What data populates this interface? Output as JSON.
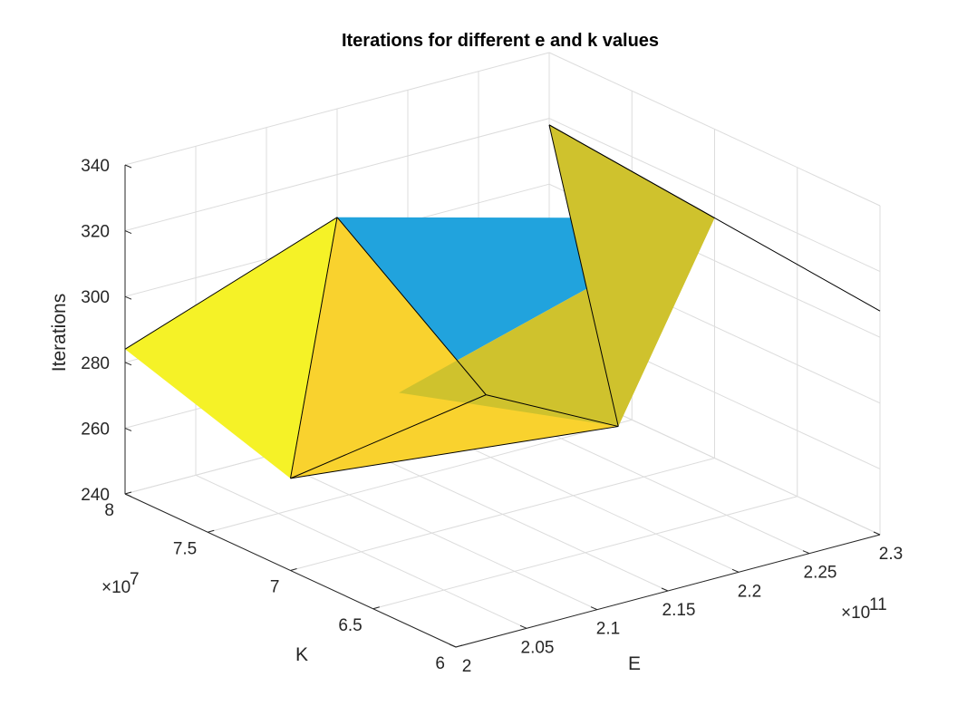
{
  "chart_data": {
    "type": "surface3d",
    "title": "Iterations for different e and k values",
    "xlabel": "E",
    "ylabel": "K",
    "zlabel": "Iterations",
    "x_multiplier": "×10",
    "x_exponent": "11",
    "y_multiplier": "×10",
    "y_exponent": "7",
    "xlim": [
      2.0,
      2.3
    ],
    "ylim": [
      6.0,
      8.0
    ],
    "zlim": [
      240,
      340
    ],
    "x_ticks": [
      "2",
      "2.05",
      "2.1",
      "2.15",
      "2.2",
      "2.25",
      "2.3"
    ],
    "y_ticks": [
      "6",
      "6.5",
      "7",
      "7.5",
      "8"
    ],
    "z_ticks": [
      "240",
      "260",
      "280",
      "300",
      "320",
      "340"
    ],
    "grid": true,
    "surface_vertices": [
      {
        "id": "A",
        "E": 2.0,
        "K": 8.0,
        "iterations": 284
      },
      {
        "id": "B",
        "E": 2.15,
        "K": 8.0,
        "iterations": 307
      },
      {
        "id": "C",
        "E": 2.3,
        "K": 8.0,
        "iterations": 318
      },
      {
        "id": "D",
        "E": 2.1,
        "K": 7.2,
        "iterations": 278
      },
      {
        "id": "E",
        "E": 2.15,
        "K": 7.1,
        "iterations": 274
      },
      {
        "id": "F",
        "E": 2.3,
        "K": 7.0,
        "iterations": 313
      },
      {
        "id": "G",
        "E": 2.0,
        "K": 7.0,
        "iterations": 268
      },
      {
        "id": "H",
        "E": 2.15,
        "K": 6.3,
        "iterations": 283
      },
      {
        "id": "I",
        "E": 2.3,
        "K": 6.0,
        "iterations": 308
      }
    ],
    "surface_faces": [
      {
        "vertices": [
          "A",
          "B",
          "G"
        ],
        "color": "#f5f227"
      },
      {
        "vertices": [
          "B",
          "D",
          "F"
        ],
        "color": "#21a3dd"
      },
      {
        "vertices": [
          "B",
          "G",
          "E"
        ],
        "color": "#f9d22e"
      },
      {
        "vertices": [
          "G",
          "E",
          "H"
        ],
        "color": "#f9d22e"
      },
      {
        "vertices": [
          "F",
          "D",
          "H"
        ],
        "color": "#cfc22d"
      },
      {
        "vertices": [
          "F",
          "C",
          "H"
        ],
        "color": "#cfc22d"
      },
      {
        "vertices": [
          "F",
          "C",
          "I"
        ],
        "color": "#f5f227"
      }
    ],
    "surface_edges": [
      [
        "A",
        "B"
      ],
      [
        "B",
        "G"
      ],
      [
        "B",
        "E"
      ],
      [
        "G",
        "E"
      ],
      [
        "E",
        "H"
      ],
      [
        "G",
        "H"
      ],
      [
        "F",
        "C"
      ],
      [
        "C",
        "H"
      ],
      [
        "C",
        "I"
      ]
    ]
  }
}
